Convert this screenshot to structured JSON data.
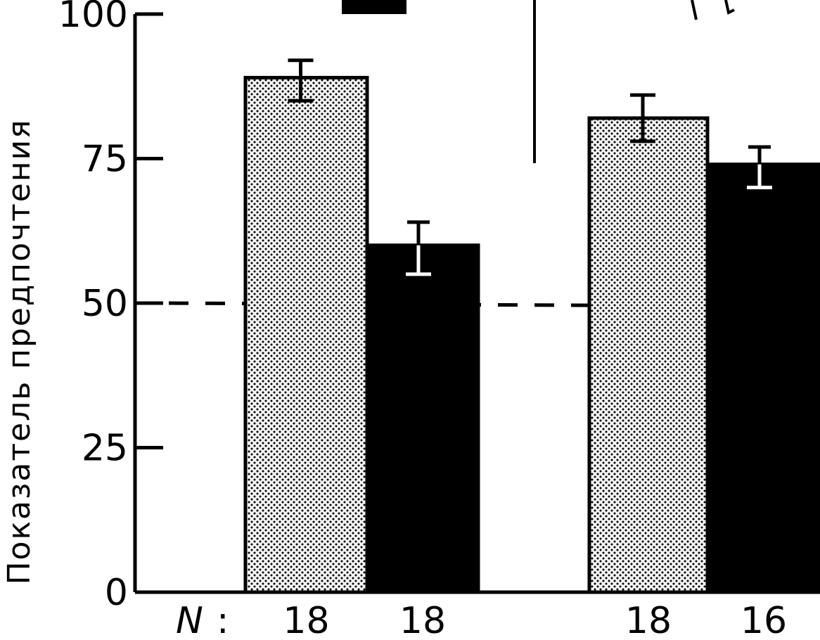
{
  "chart_data": {
    "type": "bar",
    "title": "",
    "xlabel": "",
    "ylabel": "Показатель предпочтения",
    "ylim": [
      0,
      100
    ],
    "yticks": [
      0,
      25,
      50,
      75,
      100
    ],
    "reference_line": 50,
    "n_prefix": "N",
    "bars": [
      {
        "group": 1,
        "fill": "dotted",
        "value": 89,
        "err_low": 85,
        "err_high": 92,
        "n": "18"
      },
      {
        "group": 1,
        "fill": "black",
        "value": 60,
        "err_low": 55,
        "err_high": 64,
        "n": "18"
      },
      {
        "group": 2,
        "fill": "dotted",
        "value": 82,
        "err_low": 78,
        "err_high": 86,
        "n": "18"
      },
      {
        "group": 2,
        "fill": "black",
        "value": 74,
        "err_low": 70,
        "err_high": 77,
        "n": "16"
      }
    ],
    "colors": {
      "black_bar": "#000000",
      "dotted_bar_bg": "#f4f4f4",
      "dotted_bar_dots": "#000000"
    }
  }
}
